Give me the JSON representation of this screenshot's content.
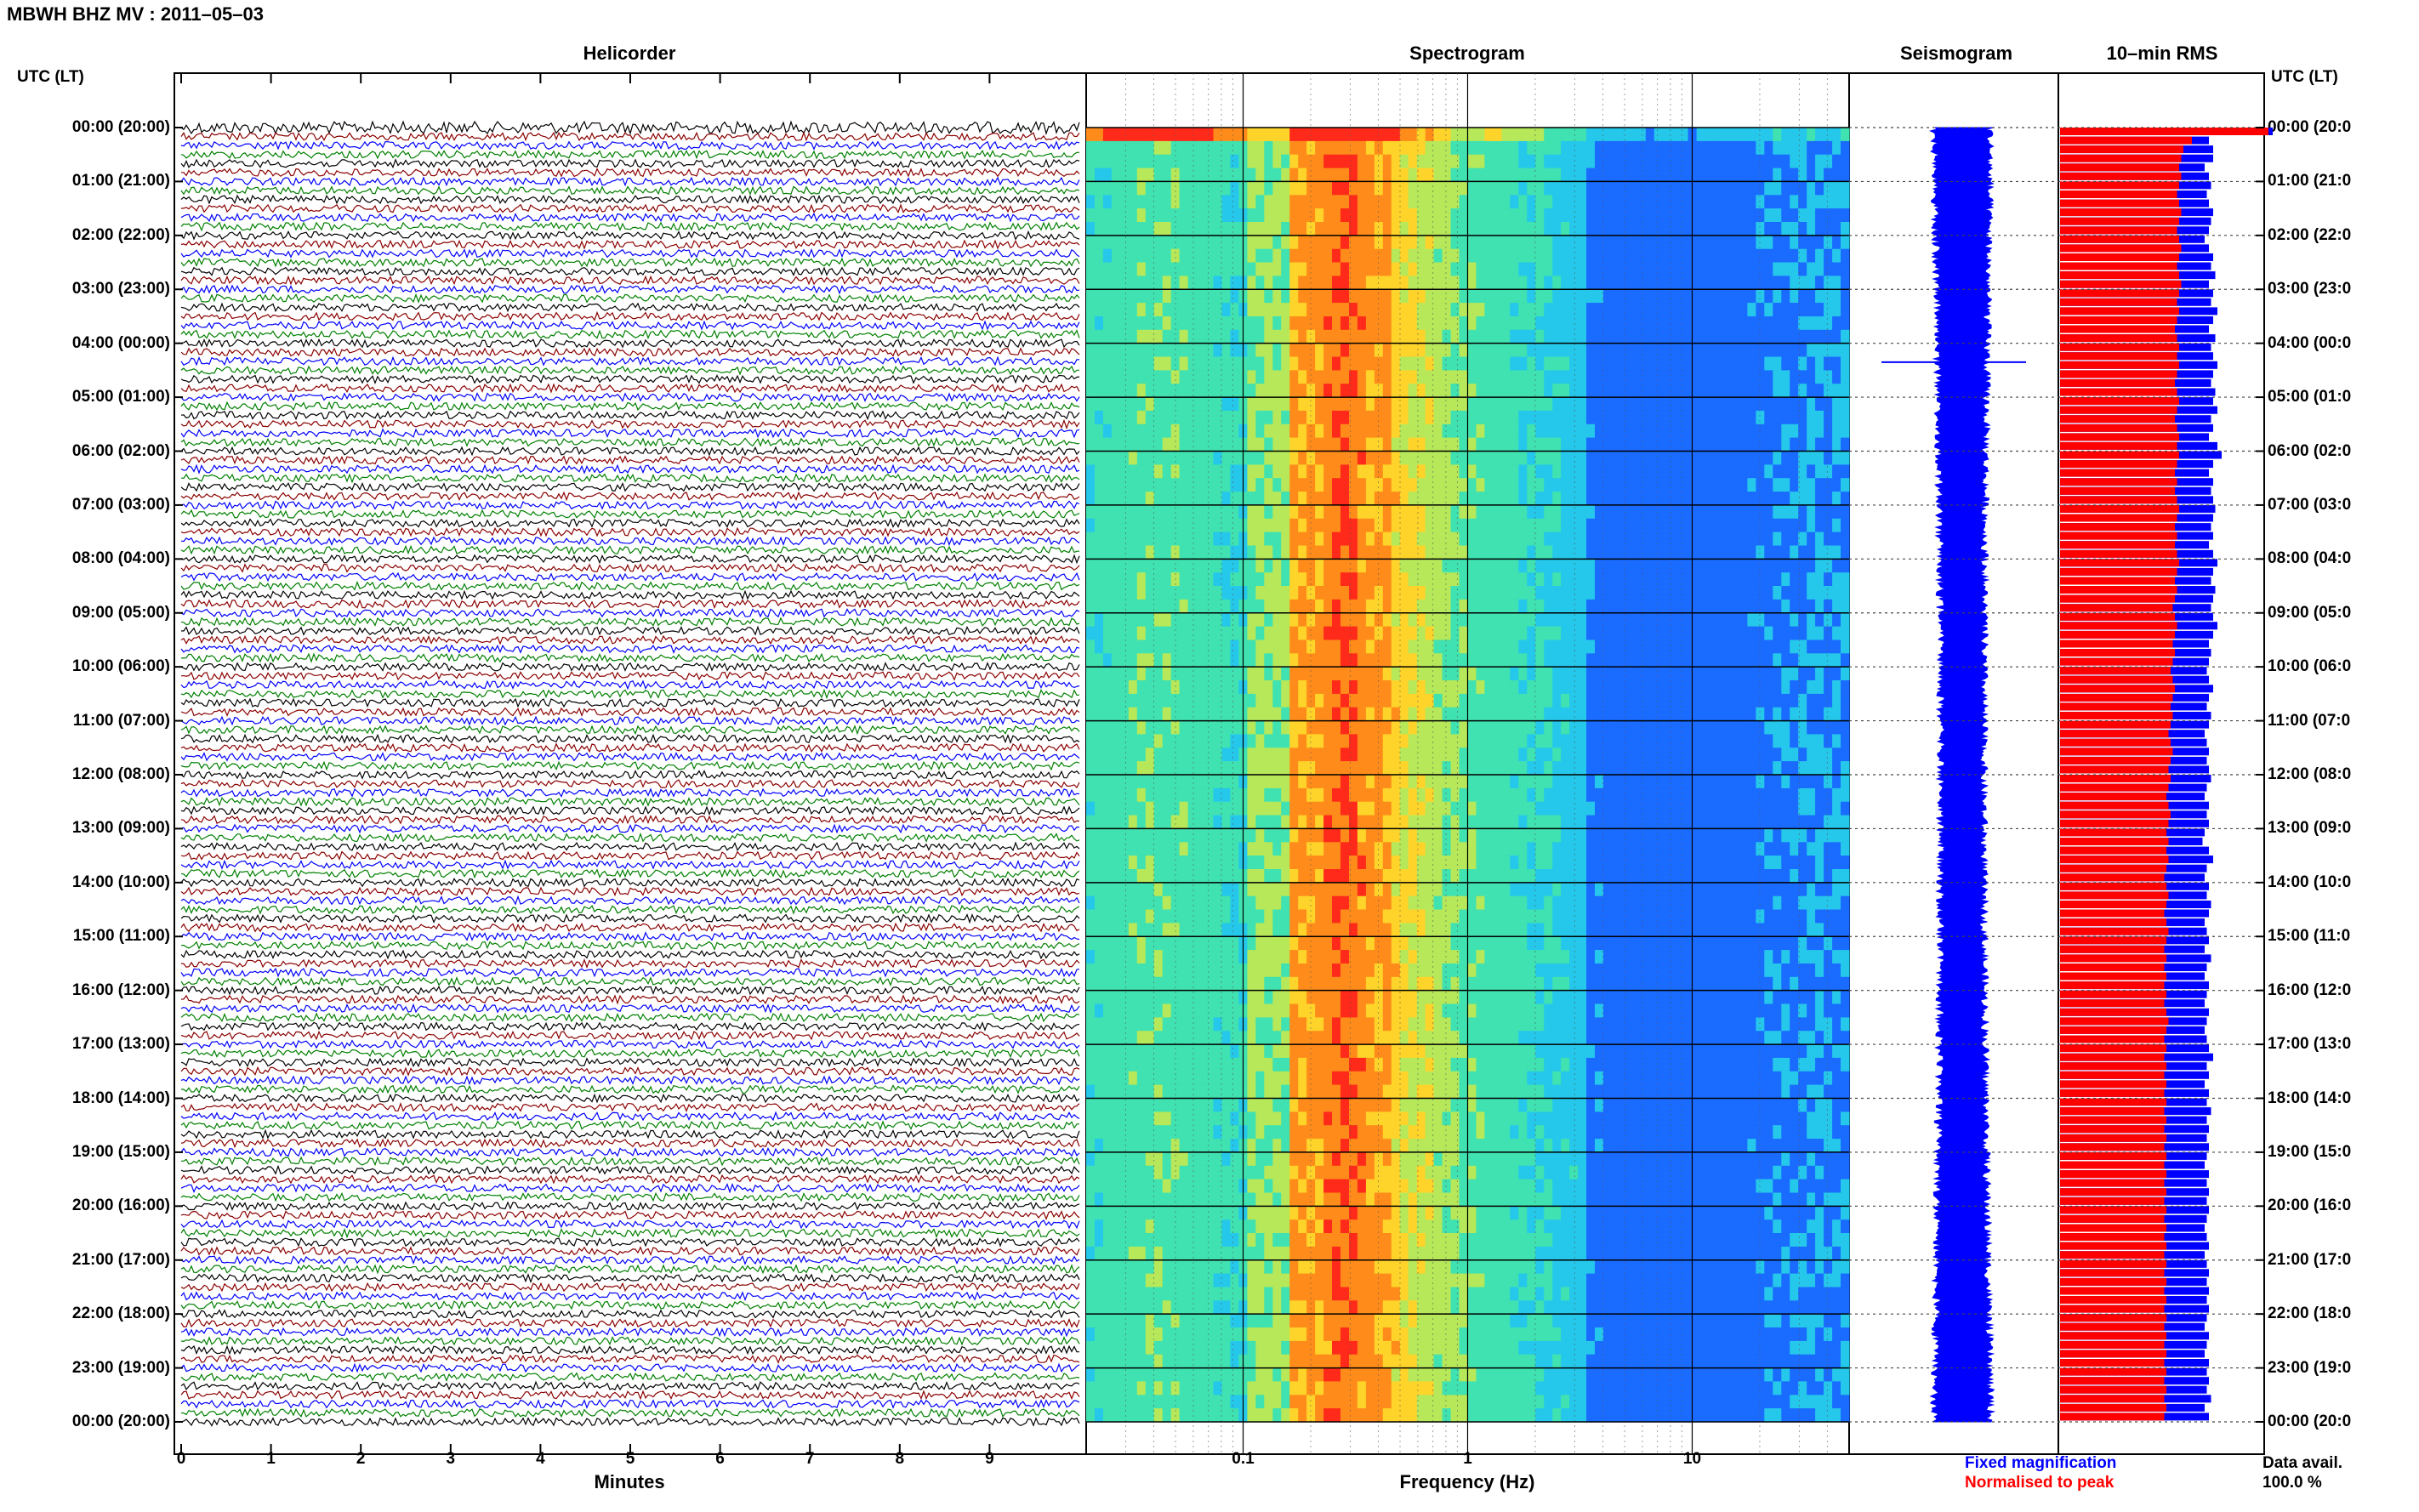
{
  "title": "MBWH BHZ MV : 2011–05–03",
  "panels": {
    "helicorder": "Helicorder",
    "spectrogram": "Spectrogram",
    "seismogram": "Seismogram",
    "rms": "10–min RMS"
  },
  "utc_header_left": "UTC (LT)",
  "utc_header_right": "UTC (LT)",
  "time_labels_left": [
    "00:00 (20:00)",
    "01:00 (21:00)",
    "02:00 (22:00)",
    "03:00 (23:00)",
    "04:00 (00:00)",
    "05:00 (01:00)",
    "06:00 (02:00)",
    "07:00 (03:00)",
    "08:00 (04:00)",
    "09:00 (05:00)",
    "10:00 (06:00)",
    "11:00 (07:00)",
    "12:00 (08:00)",
    "13:00 (09:00)",
    "14:00 (10:00)",
    "15:00 (11:00)",
    "16:00 (12:00)",
    "17:00 (13:00)",
    "18:00 (14:00)",
    "19:00 (15:00)",
    "20:00 (16:00)",
    "21:00 (17:00)",
    "22:00 (18:00)",
    "23:00 (19:00)",
    "00:00 (20:00)"
  ],
  "time_labels_right": [
    "00:00 (20:0",
    "01:00 (21:0",
    "02:00 (22:0",
    "03:00 (23:0",
    "04:00 (00:0",
    "05:00 (01:0",
    "06:00 (02:0",
    "07:00 (03:0",
    "08:00 (04:0",
    "09:00 (05:0",
    "10:00 (06:0",
    "11:00 (07:0",
    "12:00 (08:0",
    "13:00 (09:0",
    "14:00 (10:0",
    "15:00 (11:0",
    "16:00 (12:0",
    "17:00 (13:0",
    "18:00 (14:0",
    "19:00 (15:0",
    "20:00 (16:0",
    "21:00 (17:0",
    "22:00 (18:0",
    "23:00 (19:0",
    "00:00 (20:0"
  ],
  "chart_data": {
    "type": "heatmap",
    "helicorder": {
      "x_ticks": [
        "0",
        "1",
        "2",
        "3",
        "4",
        "5",
        "6",
        "7",
        "8",
        "9"
      ],
      "xlabel": "Minutes",
      "xlim": [
        0,
        10
      ],
      "lines_per_hour": 6,
      "trace_colors": [
        "#000000",
        "#8b0000",
        "#0000ff",
        "#008000"
      ]
    },
    "spectrogram": {
      "x_ticks": [
        "0.1",
        "1",
        "10"
      ],
      "xlabel": "Frequency (Hz)",
      "xlim": [
        0.02,
        50
      ],
      "x_scale": "log"
    },
    "seismogram": {
      "color": "#0000ff"
    },
    "rms": {
      "series": [
        {
          "name": "Fixed magnification",
          "color": "#0000ff",
          "values": [
            1.0,
            0.7,
            0.72,
            0.72,
            0.68,
            0.7,
            0.71,
            0.69,
            0.7,
            0.72,
            0.71,
            0.7,
            0.68,
            0.7,
            0.72,
            0.71,
            0.73,
            0.7,
            0.72,
            0.71,
            0.74,
            0.72,
            0.7,
            0.73,
            0.71,
            0.72,
            0.74,
            0.72,
            0.71,
            0.73,
            0.72,
            0.74,
            0.71,
            0.72,
            0.7,
            0.74,
            0.76,
            0.72,
            0.7,
            0.72,
            0.71,
            0.72,
            0.73,
            0.72,
            0.71,
            0.72,
            0.7,
            0.72,
            0.74,
            0.72,
            0.71,
            0.73,
            0.72,
            0.71,
            0.72,
            0.74,
            0.72,
            0.7,
            0.71,
            0.7,
            0.69,
            0.7,
            0.72,
            0.7,
            0.69,
            0.71,
            0.7,
            0.68,
            0.69,
            0.7,
            0.69,
            0.7,
            0.71,
            0.69,
            0.68,
            0.7,
            0.69,
            0.7,
            0.68,
            0.67,
            0.7,
            0.72,
            0.69,
            0.68,
            0.7,
            0.69,
            0.71,
            0.7,
            0.68,
            0.69,
            0.7,
            0.68,
            0.71,
            0.69,
            0.68,
            0.7,
            0.69,
            0.68,
            0.7,
            0.69,
            0.68,
            0.69,
            0.7,
            0.72,
            0.69,
            0.7,
            0.68,
            0.7,
            0.69,
            0.71,
            0.69,
            0.7,
            0.69,
            0.7,
            0.69,
            0.68,
            0.7,
            0.69,
            0.7,
            0.69,
            0.7,
            0.69,
            0.68,
            0.69,
            0.7,
            0.68,
            0.69,
            0.7,
            0.69,
            0.7,
            0.69,
            0.7,
            0.69,
            0.68,
            0.7,
            0.69,
            0.68,
            0.7,
            0.69,
            0.7,
            0.69,
            0.71,
            0.68,
            0.7
          ]
        },
        {
          "name": "Normalised to peak",
          "color": "#ff0000",
          "values": [
            0.98,
            0.62,
            0.58,
            0.57,
            0.56,
            0.57,
            0.56,
            0.55,
            0.56,
            0.57,
            0.56,
            0.55,
            0.56,
            0.57,
            0.56,
            0.55,
            0.56,
            0.57,
            0.56,
            0.55,
            0.56,
            0.55,
            0.54,
            0.55,
            0.56,
            0.55,
            0.56,
            0.55,
            0.54,
            0.55,
            0.56,
            0.55,
            0.54,
            0.55,
            0.56,
            0.55,
            0.56,
            0.55,
            0.54,
            0.55,
            0.54,
            0.55,
            0.56,
            0.55,
            0.54,
            0.55,
            0.54,
            0.55,
            0.56,
            0.55,
            0.54,
            0.55,
            0.54,
            0.53,
            0.54,
            0.55,
            0.54,
            0.53,
            0.54,
            0.53,
            0.52,
            0.53,
            0.54,
            0.53,
            0.52,
            0.53,
            0.52,
            0.51,
            0.52,
            0.53,
            0.52,
            0.51,
            0.52,
            0.51,
            0.5,
            0.51,
            0.52,
            0.51,
            0.5,
            0.51,
            0.5,
            0.51,
            0.5,
            0.49,
            0.5,
            0.51,
            0.5,
            0.49,
            0.5,
            0.51,
            0.5,
            0.49,
            0.5,
            0.49,
            0.5,
            0.49,
            0.5,
            0.49,
            0.5,
            0.51,
            0.5,
            0.49,
            0.5,
            0.49,
            0.5,
            0.49,
            0.5,
            0.49,
            0.5,
            0.49,
            0.5,
            0.49,
            0.5,
            0.49,
            0.5,
            0.49,
            0.5,
            0.49,
            0.5,
            0.49,
            0.5,
            0.49,
            0.5,
            0.49,
            0.5,
            0.49,
            0.5,
            0.49,
            0.5,
            0.49,
            0.5,
            0.49,
            0.5,
            0.49,
            0.5,
            0.49,
            0.5,
            0.49,
            0.5,
            0.49,
            0.5,
            0.49,
            0.5,
            0.49
          ]
        }
      ]
    }
  },
  "legend": {
    "fixed": "Fixed magnification",
    "normalised": "Normalised to peak"
  },
  "data_avail_label": "Data avail.",
  "data_avail_value": "100.0 %"
}
